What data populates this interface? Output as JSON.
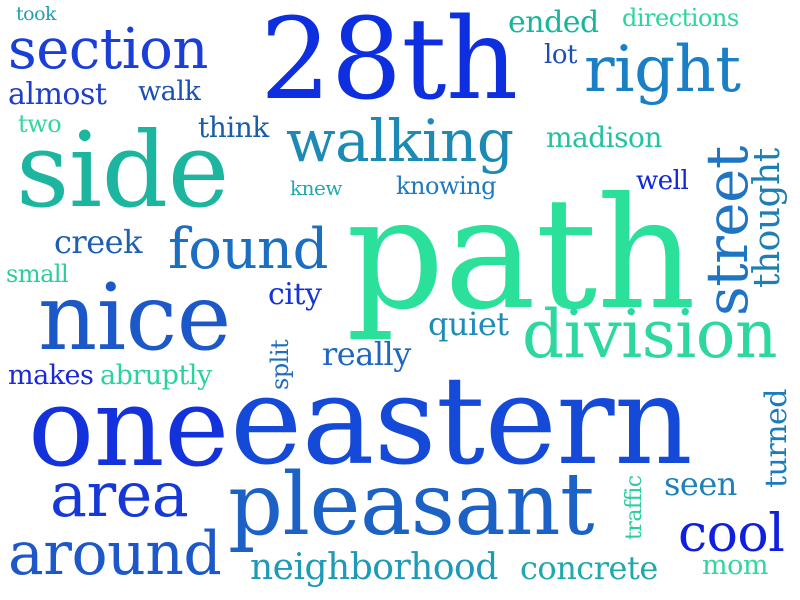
{
  "words": {
    "took": {
      "text": "took",
      "color": "#1f9eb0"
    },
    "section": {
      "text": "section",
      "color": "#1a3ed8"
    },
    "n28th": {
      "text": "28th",
      "color": "#0e2fe0"
    },
    "ended": {
      "text": "ended",
      "color": "#19b59a"
    },
    "directions": {
      "text": "directions",
      "color": "#2bd69b"
    },
    "lot": {
      "text": "lot",
      "color": "#1c4fb8"
    },
    "right": {
      "text": "right",
      "color": "#1a7fc4"
    },
    "almost": {
      "text": "almost",
      "color": "#1f3fc9"
    },
    "walk": {
      "text": "walk",
      "color": "#1a4fb6"
    },
    "two": {
      "text": "two",
      "color": "#33d6a0"
    },
    "think": {
      "text": "think",
      "color": "#1a5ea8"
    },
    "walking": {
      "text": "walking",
      "color": "#1c8ab4"
    },
    "madison": {
      "text": "madison",
      "color": "#23c3a2"
    },
    "side": {
      "text": "side",
      "color": "#1cb5a0"
    },
    "knew": {
      "text": "knew",
      "color": "#22a8b0"
    },
    "knowing": {
      "text": "knowing",
      "color": "#1e79c0"
    },
    "street": {
      "text": "street",
      "color": "#1f74c4"
    },
    "thought": {
      "text": "thought",
      "color": "#1e7fb5"
    },
    "well": {
      "text": "well",
      "color": "#1128d8"
    },
    "creek": {
      "text": "creek",
      "color": "#1e5fb4"
    },
    "found": {
      "text": "found",
      "color": "#1c6ec0"
    },
    "path": {
      "text": "path",
      "color": "#2be09a"
    },
    "small": {
      "text": "small",
      "color": "#2ccd9c"
    },
    "city": {
      "text": "city",
      "color": "#1434d4"
    },
    "nice": {
      "text": "nice",
      "color": "#1c58c8"
    },
    "quiet": {
      "text": "quiet",
      "color": "#1d8cb8"
    },
    "division": {
      "text": "division",
      "color": "#2dd8a0"
    },
    "split": {
      "text": "split",
      "color": "#1f6cc0"
    },
    "really": {
      "text": "really",
      "color": "#1d66c2"
    },
    "makes": {
      "text": "makes",
      "color": "#1a2ad6"
    },
    "abruptly": {
      "text": "abruptly",
      "color": "#2ad29e"
    },
    "one": {
      "text": "one",
      "color": "#1432dc"
    },
    "eastern": {
      "text": "eastern",
      "color": "#154ad8"
    },
    "turned": {
      "text": "turned",
      "color": "#1a7cc0"
    },
    "traffic": {
      "text": "traffic",
      "color": "#2bcca0"
    },
    "area": {
      "text": "area",
      "color": "#1538d6"
    },
    "pleasant": {
      "text": "pleasant",
      "color": "#1c62c6"
    },
    "seen": {
      "text": "seen",
      "color": "#1e82b8"
    },
    "cool": {
      "text": "cool",
      "color": "#0f1fe0"
    },
    "around": {
      "text": "around",
      "color": "#1c58c8"
    },
    "neighborhood": {
      "text": "neighborhood",
      "color": "#1e9ab8"
    },
    "concrete": {
      "text": "concrete",
      "color": "#1fa8ad"
    },
    "mom": {
      "text": "mom",
      "color": "#33d6a0"
    }
  }
}
